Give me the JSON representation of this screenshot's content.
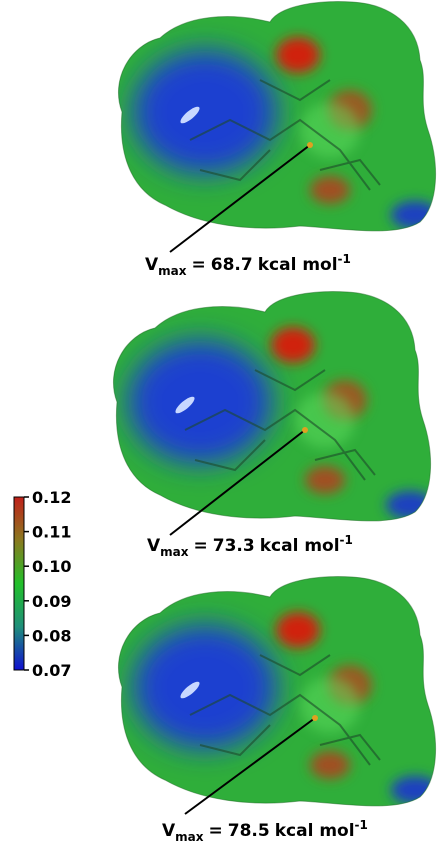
{
  "panels": [
    {
      "symbol": "V",
      "subscript": "max",
      "equals": "=",
      "value": 68.7,
      "unit": "kcal mol",
      "exponent": "-1"
    },
    {
      "symbol": "V",
      "subscript": "max",
      "equals": "=",
      "value": 73.3,
      "unit": "kcal mol",
      "exponent": "-1"
    },
    {
      "symbol": "V",
      "subscript": "max",
      "equals": "=",
      "value": 78.5,
      "unit": "kcal mol",
      "exponent": "-1"
    }
  ],
  "colorbar": {
    "lim": [
      0.07,
      0.12
    ],
    "ticks": [
      0.12,
      0.11,
      {
        "value": 0.1,
        "label": "0.10"
      },
      0.09,
      0.08,
      0.07
    ]
  }
}
